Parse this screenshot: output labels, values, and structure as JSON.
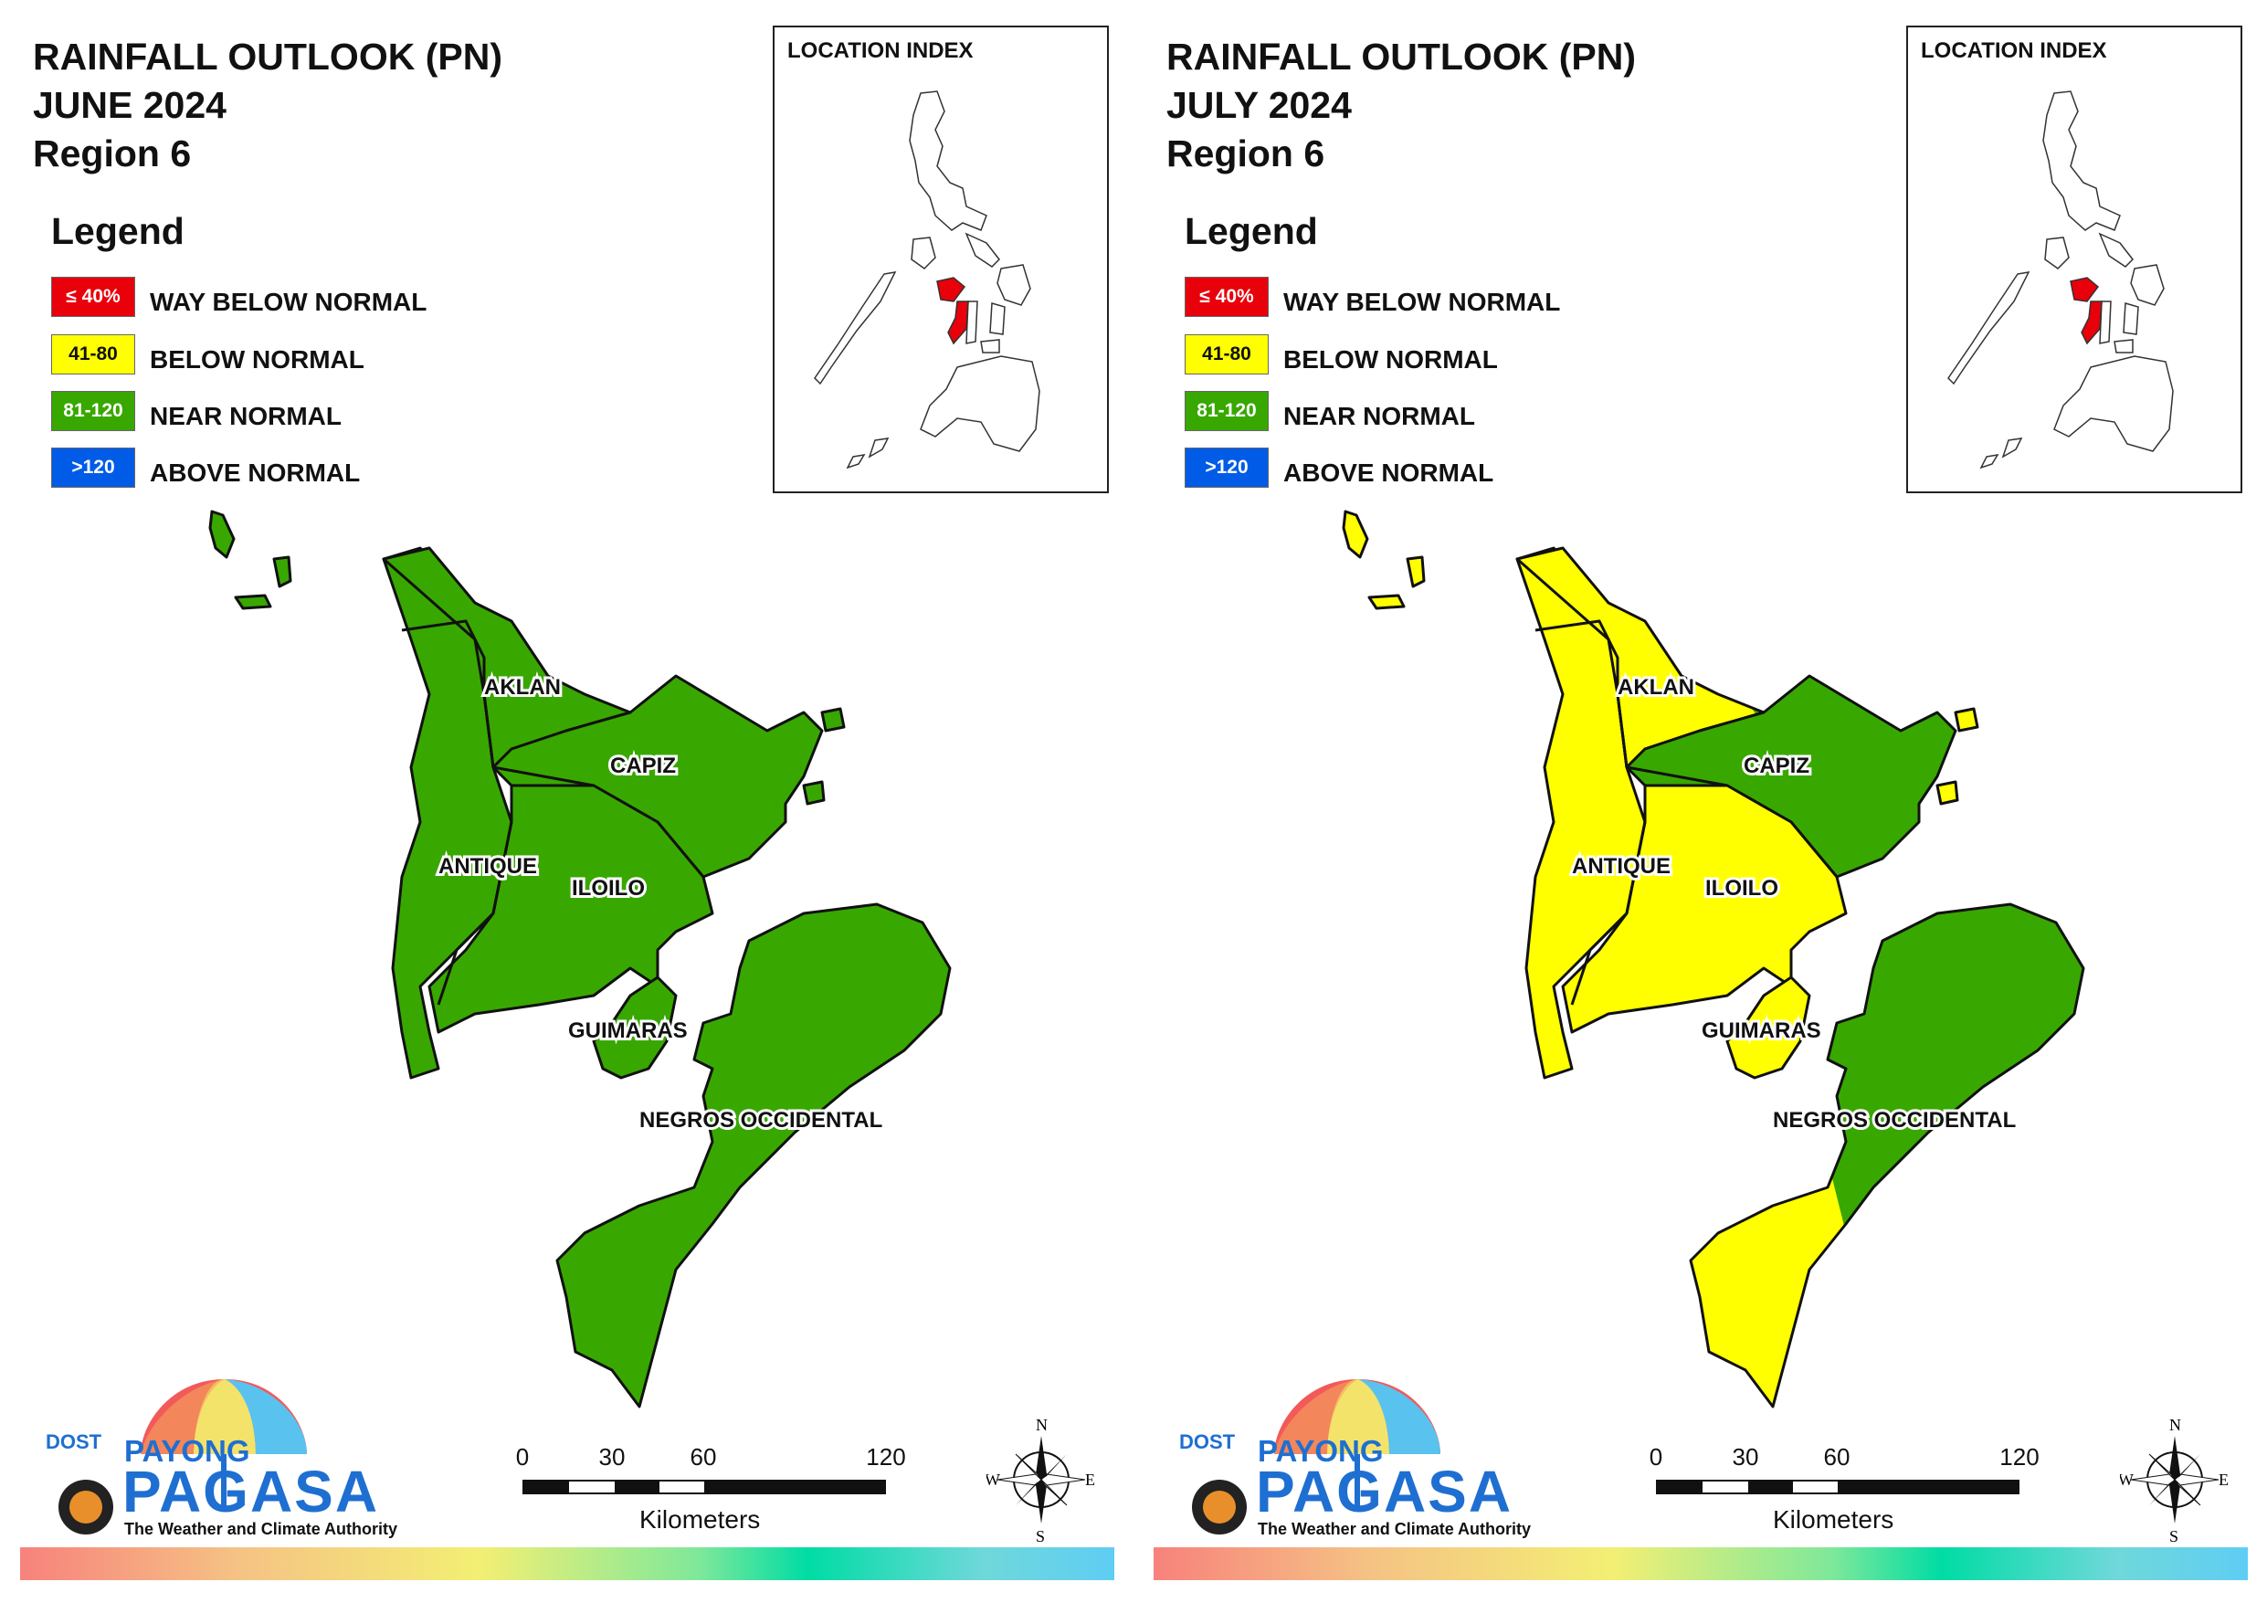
{
  "panels": [
    {
      "title_line1": "RAINFALL OUTLOOK (PN)",
      "title_line2": "JUNE 2024",
      "title_line3": "Region 6",
      "provinces": {
        "aklan": "near_normal",
        "capiz": "near_normal",
        "antique": "near_normal",
        "iloilo": "near_normal",
        "guimaras": "near_normal",
        "negros_occidental": "near_normal"
      }
    },
    {
      "title_line1": "RAINFALL OUTLOOK (PN)",
      "title_line2": "JULY 2024",
      "title_line3": "Region 6",
      "provinces": {
        "aklan": "mixed_below_near",
        "capiz": "near_normal",
        "antique": "below_normal",
        "iloilo": "mixed_below_near",
        "guimaras": "below_normal",
        "negros_occidental": "mostly_near_normal"
      }
    }
  ],
  "legend": {
    "title": "Legend",
    "items": [
      {
        "range": "≤ 40%",
        "label": "WAY BELOW NORMAL",
        "color": "#e8000b"
      },
      {
        "range": "41-80",
        "label": "BELOW NORMAL",
        "color": "#ffff00"
      },
      {
        "range": "81-120",
        "label": "NEAR NORMAL",
        "color": "#38a800"
      },
      {
        "range": ">120",
        "label": "ABOVE NORMAL",
        "color": "#005ce6"
      }
    ]
  },
  "location_index": {
    "title": "LOCATION INDEX",
    "highlight_color": "#e8000b"
  },
  "province_labels": {
    "aklan": "AKLAN",
    "capiz": "CAPIZ",
    "antique": "ANTIQUE",
    "iloilo": "ILOILO",
    "guimaras": "GUIMARAS",
    "negros_occidental": "NEGROS OCCIDENTAL"
  },
  "scale_bar": {
    "ticks": [
      "0",
      "30",
      "60",
      "120"
    ],
    "unit": "Kilometers"
  },
  "compass": {
    "n": "N",
    "s": "S",
    "e": "E",
    "w": "W"
  },
  "logo": {
    "dost": "DOST",
    "payong": "PAYONG",
    "pagasa": "PAGASA",
    "tagline": "The Weather and Climate Authority"
  },
  "colors": {
    "near_normal": "#38a800",
    "below_normal": "#ffff00",
    "way_below_normal": "#e8000b",
    "above_normal": "#005ce6"
  }
}
